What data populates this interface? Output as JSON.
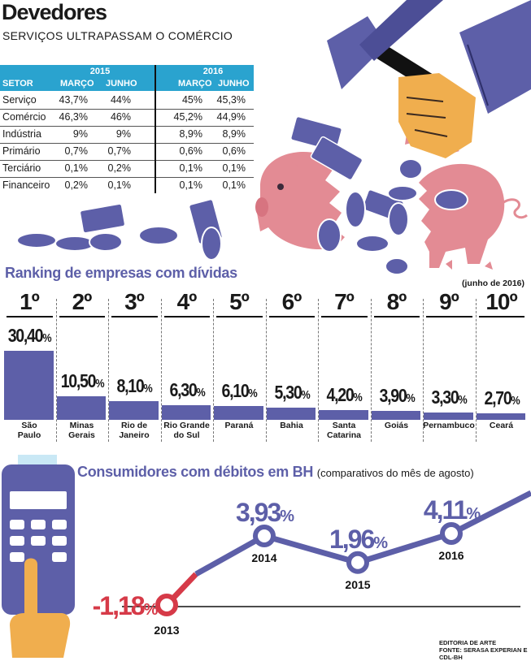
{
  "header": {
    "title": "Devedores",
    "subtitle": "SERVIÇOS ULTRAPASSAM O COMÉRCIO"
  },
  "table": {
    "sector_label": "SETOR",
    "years": [
      "2015",
      "2016"
    ],
    "months": [
      "MARÇO",
      "JUNHO",
      "MARÇO",
      "JUNHO"
    ],
    "rows": [
      {
        "sector": "Serviço",
        "v": [
          "43,7%",
          "44%",
          "45%",
          "45,3%"
        ]
      },
      {
        "sector": "Comércio",
        "v": [
          "46,3%",
          "46%",
          "45,2%",
          "44,9%"
        ]
      },
      {
        "sector": "Indústria",
        "v": [
          "9%",
          "9%",
          "8,9%",
          "8,9%"
        ]
      },
      {
        "sector": "Primário",
        "v": [
          "0,7%",
          "0,7%",
          "0,6%",
          "0,6%"
        ]
      },
      {
        "sector": "Terciário",
        "v": [
          "0,1%",
          "0,2%",
          "0,1%",
          "0,1%"
        ]
      },
      {
        "sector": "Financeiro",
        "v": [
          "0,2%",
          "0,1%",
          "0,1%",
          "0,1%"
        ]
      }
    ]
  },
  "chart_data": [
    {
      "type": "bar",
      "title": "Ranking de empresas com dívidas",
      "note": "(junho de 2016)",
      "ranks": [
        "1º",
        "2º",
        "3º",
        "4º",
        "5º",
        "6º",
        "7º",
        "8º",
        "9º",
        "10º"
      ],
      "categories": [
        "São Paulo",
        "Minas Gerais",
        "Rio de Janeiro",
        "Rio Grande do Sul",
        "Paraná",
        "Bahia",
        "Santa Catarina",
        "Goiás",
        "Pernambuco",
        "Ceará"
      ],
      "category_lines": [
        [
          "São",
          "Paulo"
        ],
        [
          "Minas",
          "Gerais"
        ],
        [
          "Rio de",
          "Janeiro"
        ],
        [
          "Rio Grande",
          "do Sul"
        ],
        [
          "Paraná"
        ],
        [
          "Bahia"
        ],
        [
          "Santa",
          "Catarina"
        ],
        [
          "Goiás"
        ],
        [
          "Pernambuco"
        ],
        [
          "Ceará"
        ]
      ],
      "values": [
        30.4,
        10.5,
        8.1,
        6.3,
        6.1,
        5.3,
        4.2,
        3.9,
        3.3,
        2.7
      ],
      "labels": [
        "30,40",
        "10,50",
        "8,10",
        "6,30",
        "6,10",
        "5,30",
        "4,20",
        "3,90",
        "3,30",
        "2,70"
      ],
      "unit": "%"
    },
    {
      "type": "line",
      "title": "Consumidores com débitos em BH",
      "subtitle": "(comparativos do mês de agosto)",
      "x": [
        "2013",
        "2014",
        "2015",
        "2016"
      ],
      "values": [
        -1.18,
        3.93,
        1.96,
        4.11
      ],
      "labels": [
        "-1,18",
        "3,93",
        "1,96",
        "4,11"
      ],
      "unit": "%"
    }
  ],
  "footer": {
    "line1": "EDITORIA DE ARTE",
    "line2": "FONTE: SERASA EXPERIAN E CDL-BH"
  },
  "colors": {
    "accent": "#5d5fa8",
    "table_header": "#2aa3cf",
    "pig": "#e38b94",
    "hand": "#f0ae4e",
    "negative": "#d63a48"
  }
}
